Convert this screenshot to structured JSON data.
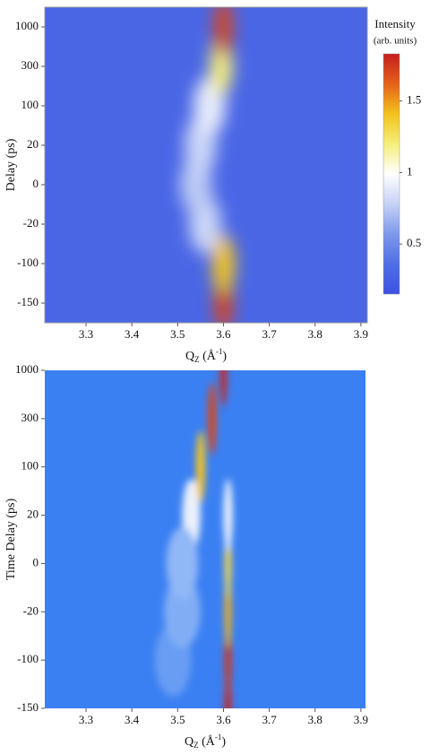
{
  "chart_data": [
    {
      "type": "heatmap",
      "ylabel": "Delay (ps)",
      "xlabel": [
        "Q",
        "Z",
        " (Å",
        "-1",
        ")"
      ],
      "categories": [
        -150,
        -100,
        -20,
        0,
        20,
        100,
        300,
        1000
      ],
      "category_layout": "band",
      "xlim": [
        3.21,
        3.914
      ],
      "xticks": [
        3.3,
        3.4,
        3.5,
        3.6,
        3.7,
        3.8,
        3.9
      ],
      "background": 0.3,
      "frame": true,
      "colormap": [
        "#3d52e3",
        "#4f6ee6",
        "#7e98ec",
        "#c6d2f6",
        "#ffffff",
        "#f5ee7a",
        "#f3c21d",
        "#e5611a",
        "#c41e1e"
      ],
      "clim": [
        0.15,
        1.83
      ],
      "ridges": [
        {
          "q": [
            3.6,
            3.6,
            3.56,
            3.54,
            3.55,
            3.57,
            3.595,
            3.6
          ],
          "values": [
            1.7,
            1.4,
            0.8,
            0.75,
            0.8,
            0.9,
            1.2,
            1.7
          ],
          "width": [
            0.04,
            0.05,
            0.07,
            0.07,
            0.07,
            0.07,
            0.05,
            0.04
          ]
        }
      ],
      "colorbar": {
        "title": [
          "Intensity",
          "(arb. units)"
        ],
        "ticks": [
          0.5,
          1.0,
          1.5
        ]
      }
    },
    {
      "type": "heatmap",
      "ylabel": "Time Delay (ps)",
      "xlabel": [
        "Q",
        "Z",
        " (Å",
        "-1",
        ")"
      ],
      "categories": [
        -150,
        -100,
        -20,
        0,
        20,
        100,
        300,
        1000
      ],
      "category_layout": "point",
      "xlim": [
        3.21,
        3.91
      ],
      "xticks": [
        3.3,
        3.4,
        3.5,
        3.6,
        3.7,
        3.8,
        3.9
      ],
      "background": 0.15,
      "frame": false,
      "colormap": [
        "#3b80f2",
        "#4f8ef2",
        "#86b0f5",
        "#cfdff9",
        "#ffffff",
        "#f5ee7a",
        "#f3c21d",
        "#e5611a",
        "#c41e1e"
      ],
      "clim": [
        0.15,
        1.83
      ],
      "ridges": [
        {
          "q": [
            3.61,
            3.61,
            3.61,
            3.61,
            3.53,
            3.55,
            3.575,
            3.6
          ],
          "values": [
            1.8,
            1.75,
            1.45,
            1.3,
            0.9,
            1.4,
            1.7,
            1.8
          ],
          "width": [
            0.015,
            0.015,
            0.015,
            0.015,
            0.04,
            0.02,
            0.018,
            0.015
          ]
        },
        {
          "q": [
            null,
            3.49,
            3.51,
            3.51,
            3.61,
            null,
            null,
            null
          ],
          "values": [
            null,
            0.45,
            0.55,
            0.6,
            0.9,
            null,
            null,
            null
          ],
          "width": [
            null,
            0.08,
            0.08,
            0.07,
            0.02,
            null,
            null,
            null
          ]
        }
      ]
    }
  ]
}
